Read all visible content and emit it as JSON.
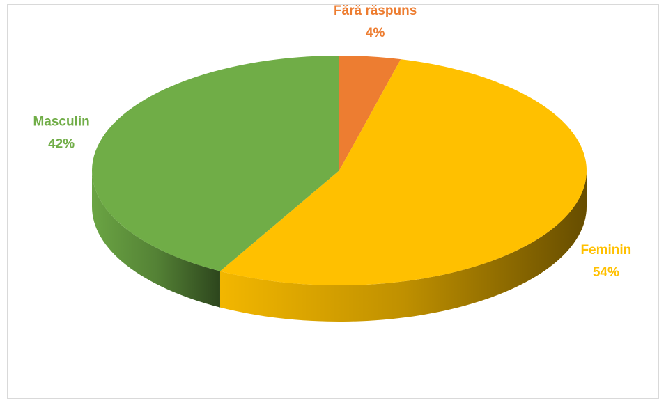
{
  "chart_data": {
    "type": "pie",
    "categories": [
      "Fără răspuns",
      "Feminin",
      "Masculin"
    ],
    "values": [
      4,
      54,
      42
    ],
    "value_labels": [
      "4%",
      "54%",
      "42%"
    ],
    "colors": [
      "#ED7D31",
      "#FFC000",
      "#70AD47"
    ]
  }
}
